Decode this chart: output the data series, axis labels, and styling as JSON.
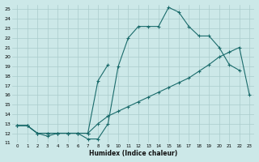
{
  "xlabel": "Humidex (Indice chaleur)",
  "background_color": "#cce8e8",
  "grid_color": "#aacccc",
  "line_color": "#1a6b6b",
  "xlim": [
    -0.5,
    23.5
  ],
  "ylim": [
    11,
    25.5
  ],
  "xticks": [
    0,
    1,
    2,
    3,
    4,
    5,
    6,
    7,
    8,
    9,
    10,
    11,
    12,
    13,
    14,
    15,
    16,
    17,
    18,
    19,
    20,
    21,
    22,
    23
  ],
  "yticks": [
    11,
    12,
    13,
    14,
    15,
    16,
    17,
    18,
    19,
    20,
    21,
    22,
    23,
    24,
    25
  ],
  "series": [
    {
      "x": [
        0,
        1,
        2,
        3,
        4,
        5,
        6,
        7,
        8,
        9,
        10,
        11,
        12,
        13,
        14,
        15,
        16,
        17,
        18,
        19,
        20,
        21,
        22
      ],
      "y": [
        12.8,
        12.8,
        12.0,
        11.7,
        12.0,
        12.0,
        12.0,
        11.4,
        11.4,
        13.0,
        19.0,
        22.0,
        23.2,
        23.2,
        23.2,
        25.2,
        24.7,
        23.2,
        22.2,
        22.2,
        21.0,
        19.2,
        18.6
      ]
    },
    {
      "x": [
        0,
        1,
        2,
        3,
        4,
        5,
        6,
        7,
        8,
        9
      ],
      "y": [
        12.8,
        12.8,
        12.0,
        12.0,
        12.0,
        12.0,
        12.0,
        12.0,
        17.5,
        19.2
      ]
    },
    {
      "x": [
        0,
        1,
        2,
        3,
        4,
        5,
        6,
        7,
        8,
        9,
        10,
        11,
        12,
        13,
        14,
        15,
        16,
        17,
        18,
        19,
        20,
        21,
        22,
        23
      ],
      "y": [
        12.8,
        12.8,
        12.0,
        12.0,
        12.0,
        12.0,
        12.0,
        12.0,
        13.0,
        13.8,
        14.3,
        14.8,
        15.3,
        15.8,
        16.3,
        16.8,
        17.3,
        17.8,
        18.5,
        19.2,
        20.0,
        20.5,
        21.0,
        16.0
      ]
    }
  ]
}
